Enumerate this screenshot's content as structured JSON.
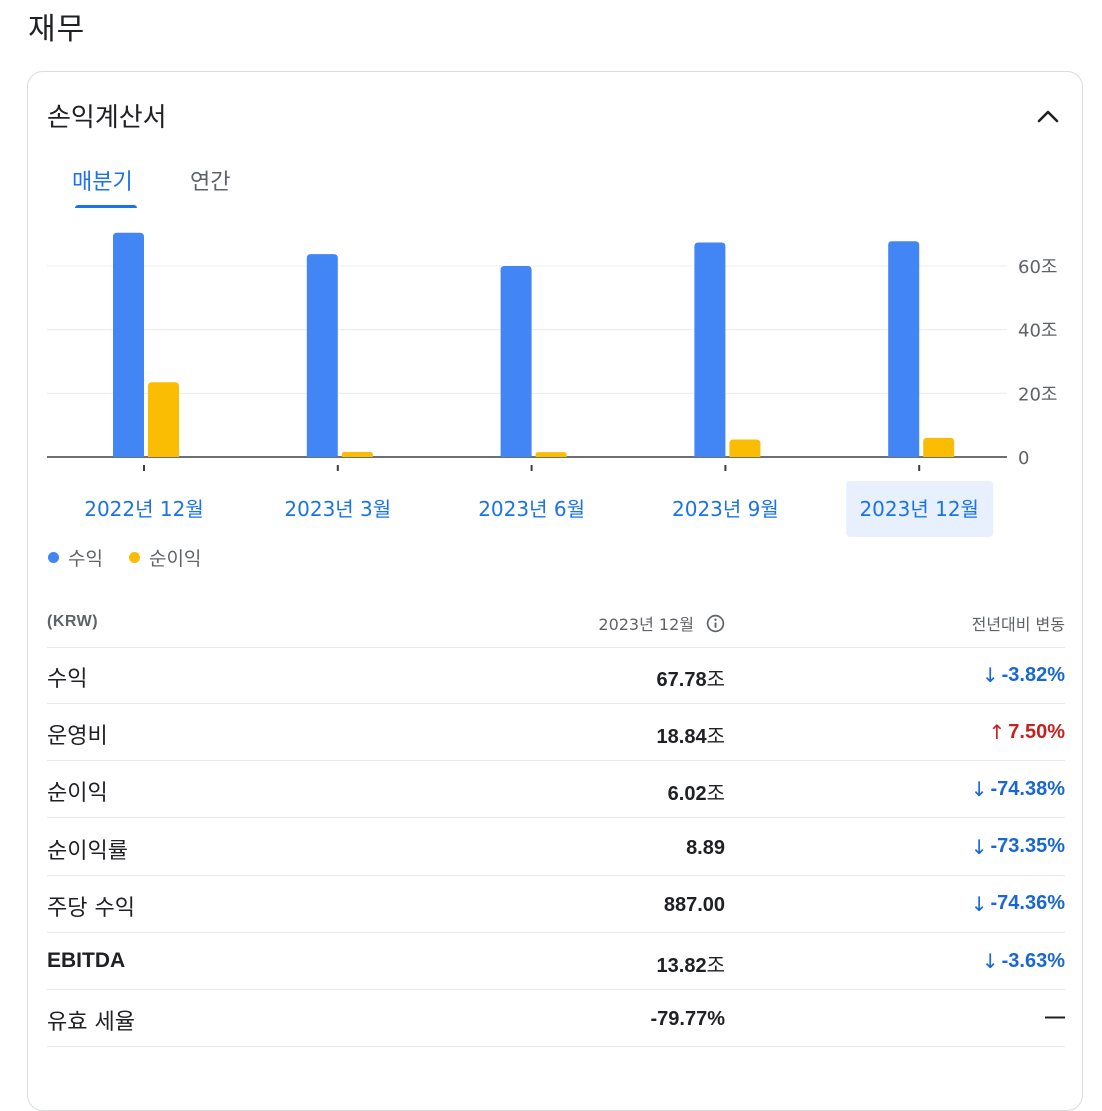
{
  "page": {
    "title": "재무"
  },
  "card": {
    "title": "손익계산서"
  },
  "tabs": [
    {
      "label": "매분기",
      "active": true
    },
    {
      "label": "연간",
      "active": false
    }
  ],
  "chart_data": {
    "type": "bar",
    "categories": [
      "2022년 12월",
      "2023년 3월",
      "2023년 6월",
      "2023년 9월",
      "2023년 12월"
    ],
    "selected_category": "2023년 12월",
    "series": [
      {
        "name": "수익",
        "color": "#4285f4",
        "values": [
          70.46,
          63.75,
          60.01,
          67.4,
          67.78
        ]
      },
      {
        "name": "순이익",
        "color": "#fbbc04",
        "values": [
          23.47,
          1.57,
          1.55,
          5.5,
          6.02
        ]
      }
    ],
    "y_ticks": [
      {
        "value": 0,
        "label": "0"
      },
      {
        "value": 20,
        "label": "20조"
      },
      {
        "value": 40,
        "label": "40조"
      },
      {
        "value": 60,
        "label": "60조"
      }
    ],
    "ylim": [
      0,
      72
    ],
    "y_axis_side": "right",
    "grid": true,
    "legend_position": "bottom-left"
  },
  "table": {
    "header": {
      "label": "(KRW)",
      "date": "2023년 12월",
      "change": "전년대비 변동"
    },
    "rows": [
      {
        "label": "수익",
        "value": "67.78",
        "unit": "조",
        "change": "-3.82%",
        "dir": "down",
        "arrow": "↓"
      },
      {
        "label": "운영비",
        "value": "18.84",
        "unit": "조",
        "change": "7.50%",
        "dir": "up",
        "arrow": "↑"
      },
      {
        "label": "순이익",
        "value": "6.02",
        "unit": "조",
        "change": "-74.38%",
        "dir": "down",
        "arrow": "↓"
      },
      {
        "label": "순이익률",
        "value": "8.89",
        "unit": "",
        "change": "-73.35%",
        "dir": "down",
        "arrow": "↓"
      },
      {
        "label": "주당 수익",
        "value": "887.00",
        "unit": "",
        "change": "-74.36%",
        "dir": "down",
        "arrow": "↓"
      },
      {
        "label": "EBITDA",
        "value": "13.82",
        "unit": "조",
        "change": "-3.63%",
        "dir": "down",
        "arrow": "↓"
      },
      {
        "label": "유효 세율",
        "value": "-79.77%",
        "unit": "",
        "change": "—",
        "dir": "none",
        "arrow": ""
      }
    ]
  }
}
